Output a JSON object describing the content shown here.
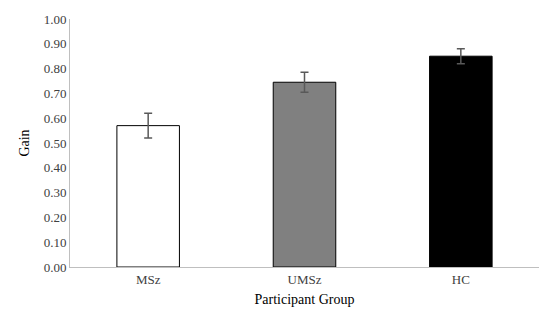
{
  "chart_data": {
    "type": "bar",
    "x_label": "Participant Group",
    "y_label": "Gain",
    "categories": [
      "MSz",
      "UMSz",
      "HC"
    ],
    "values": [
      0.57,
      0.745,
      0.85
    ],
    "errors": [
      0.05,
      0.04,
      0.03
    ],
    "colors": [
      "#ffffff",
      "#808080",
      "#000000"
    ],
    "ylim": [
      0,
      1
    ],
    "yticks": [
      {
        "value": 0,
        "label": "0.00"
      },
      {
        "value": 0.1,
        "label": "0.10"
      },
      {
        "value": 0.2,
        "label": "0.20"
      },
      {
        "value": 0.3,
        "label": "0.30"
      },
      {
        "value": 0.4,
        "label": "0.40"
      },
      {
        "value": 0.5,
        "label": "0.50"
      },
      {
        "value": 0.6,
        "label": "0.60"
      },
      {
        "value": 0.7,
        "label": "0.70"
      },
      {
        "value": 0.8,
        "label": "0.80"
      },
      {
        "value": 0.9,
        "label": "0.90"
      },
      {
        "value": 1,
        "label": "1.00"
      }
    ],
    "grid": false
  }
}
